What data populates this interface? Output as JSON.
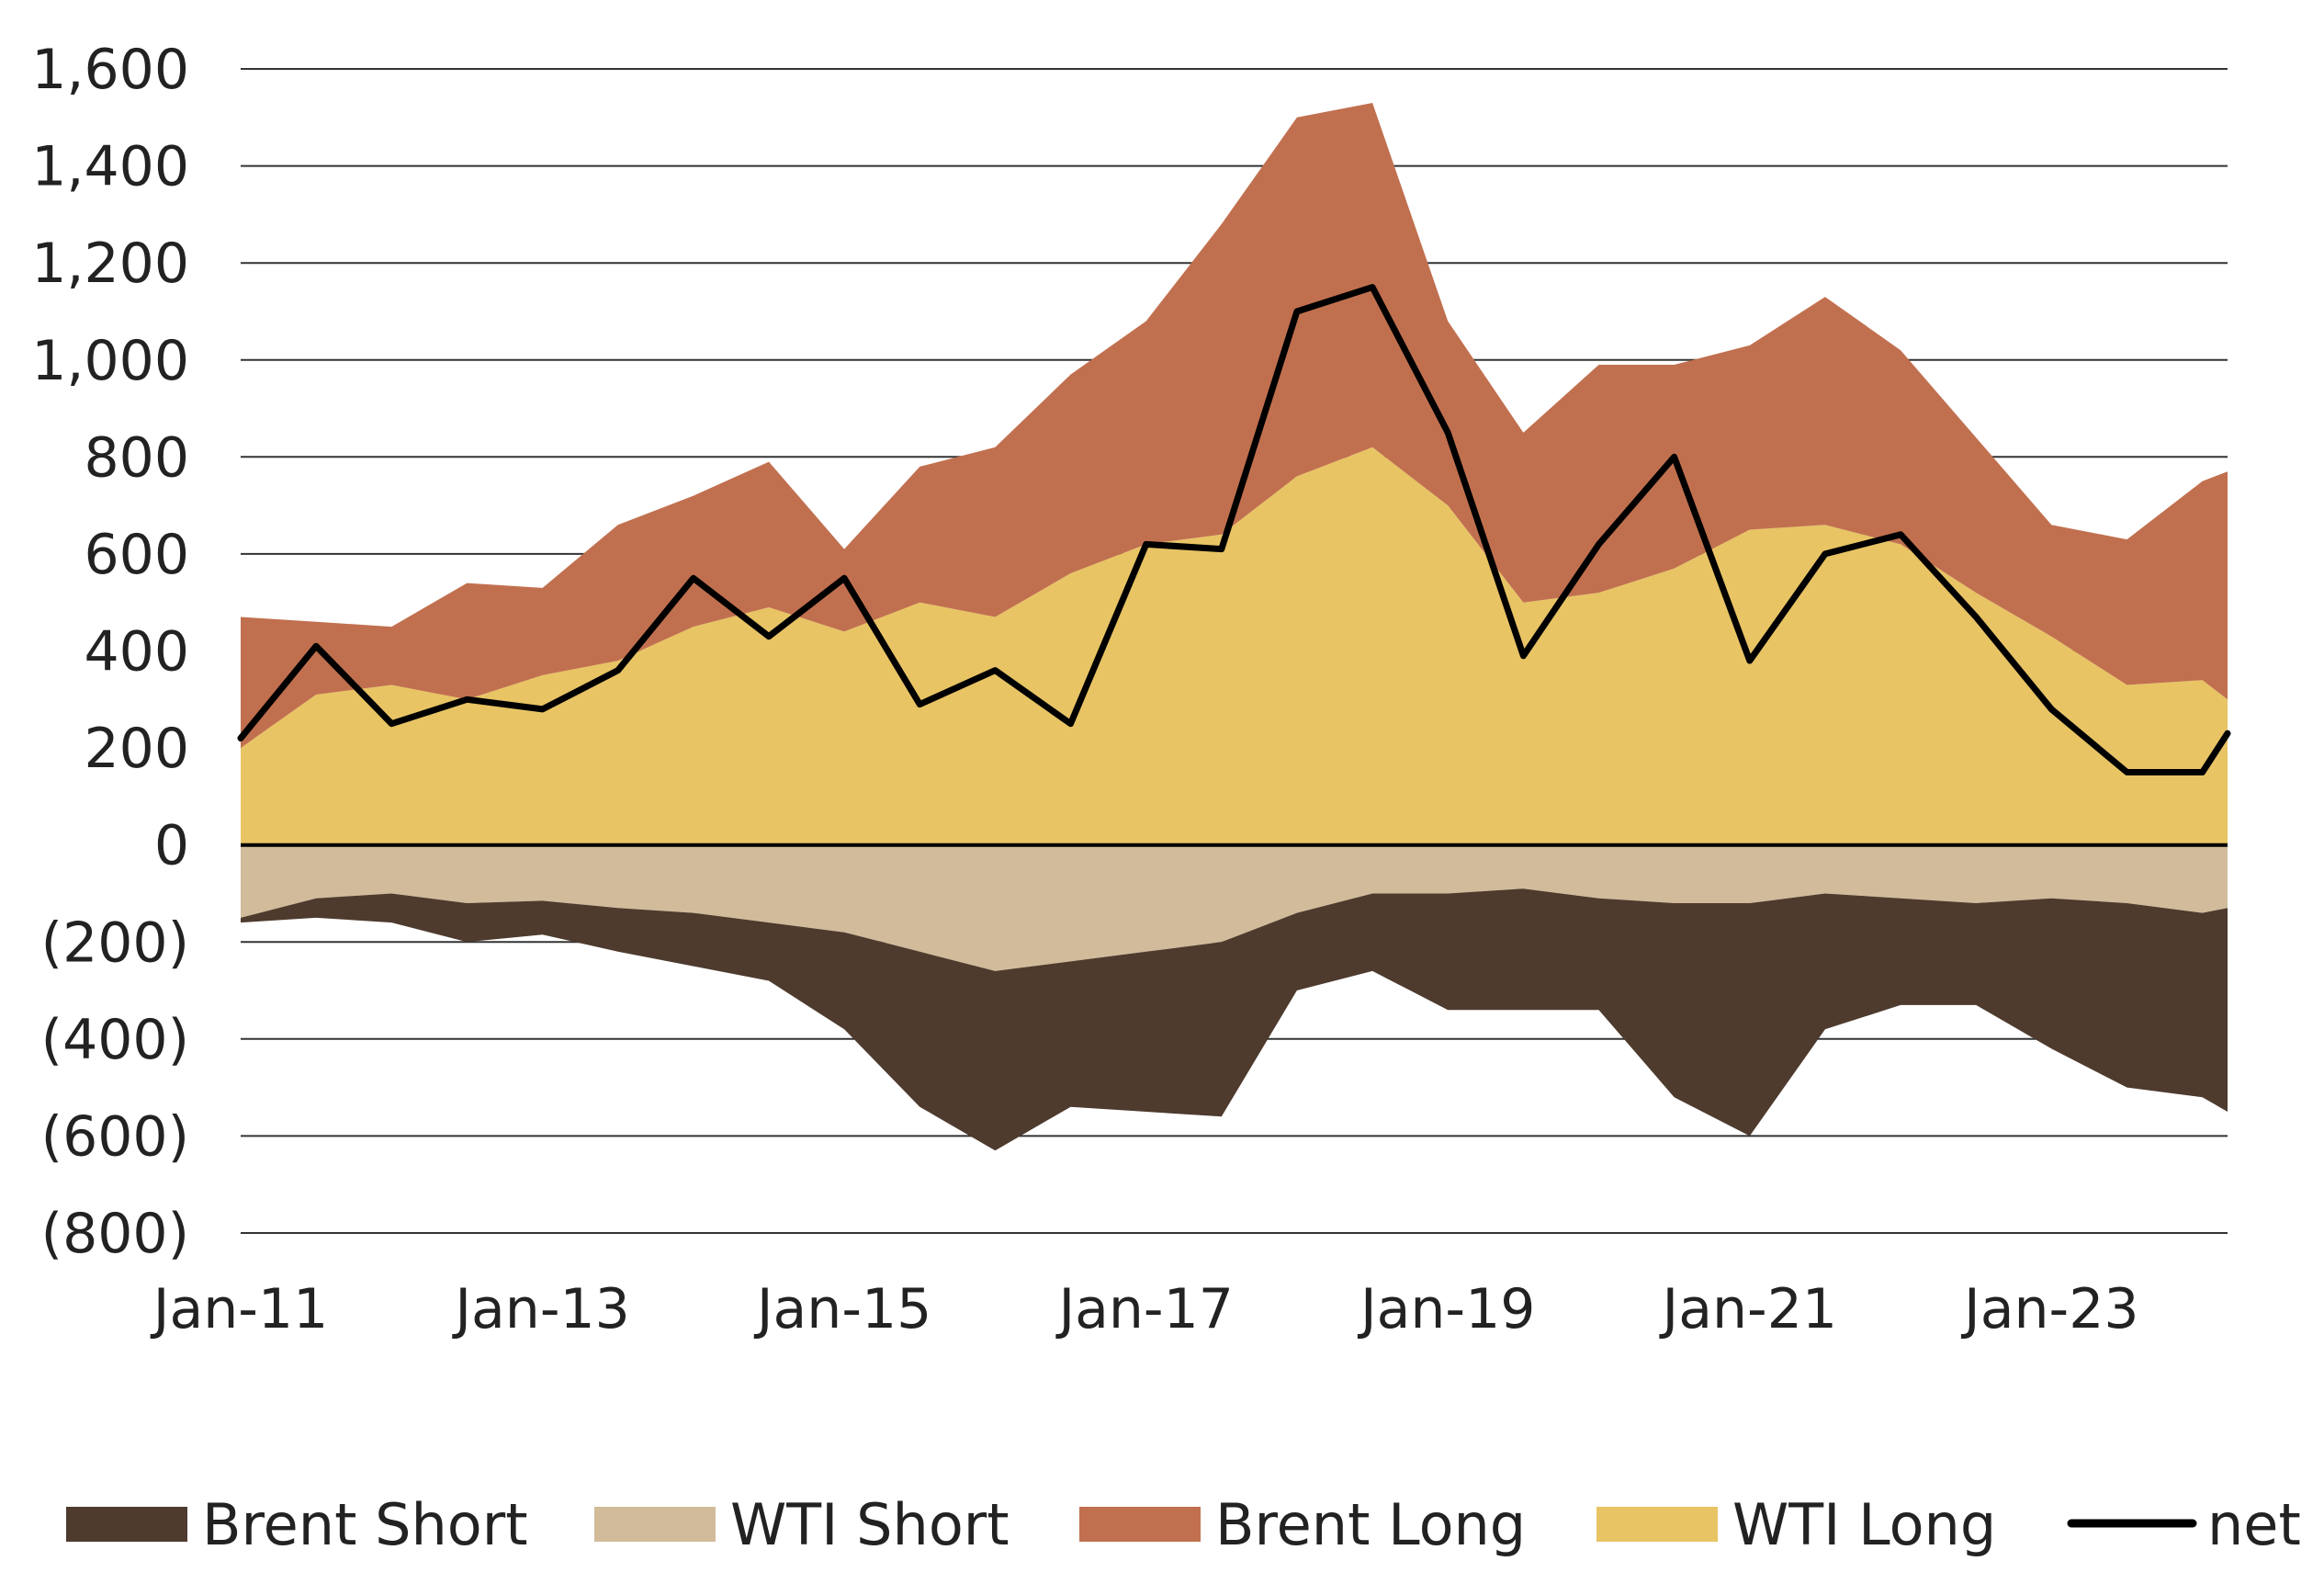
{
  "chart_data": {
    "type": "area",
    "title": "",
    "xlabel": "",
    "ylabel": "",
    "ylim": [
      -800,
      1600
    ],
    "yticks": [
      1600,
      1400,
      1200,
      1000,
      800,
      600,
      400,
      200,
      0,
      -200,
      -400,
      -600,
      -800
    ],
    "ytick_labels": [
      "1,600",
      "1,400",
      "1,200",
      "1,000",
      "800",
      "600",
      "400",
      "200",
      "0",
      "(200)",
      "(400)",
      "(600)",
      "(800)"
    ],
    "xlim": [
      "2011-01",
      "2024-03"
    ],
    "xtick_labels": [
      "Jan-11",
      "Jan-13",
      "Jan-15",
      "Jan-17",
      "Jan-19",
      "Jan-21",
      "Jan-23"
    ],
    "grid": "horizontal",
    "legend_position": "bottom",
    "x": [
      "2011-01",
      "2011-07",
      "2012-01",
      "2012-07",
      "2013-01",
      "2013-07",
      "2014-01",
      "2014-07",
      "2015-01",
      "2015-07",
      "2016-01",
      "2016-07",
      "2017-01",
      "2017-07",
      "2018-01",
      "2018-07",
      "2019-01",
      "2019-07",
      "2020-01",
      "2020-07",
      "2021-01",
      "2021-07",
      "2022-01",
      "2022-07",
      "2023-01",
      "2023-07",
      "2024-01",
      "2024-03"
    ],
    "series": [
      {
        "name": "WTI Long",
        "kind": "positive-stack",
        "color": "#E8C465",
        "values": [
          200,
          310,
          330,
          300,
          350,
          380,
          450,
          490,
          440,
          500,
          470,
          560,
          620,
          640,
          760,
          820,
          700,
          500,
          520,
          570,
          650,
          660,
          620,
          520,
          430,
          330,
          340,
          300
        ]
      },
      {
        "name": "Brent Long",
        "kind": "positive-stack",
        "color": "#C1704F",
        "values": [
          270,
          150,
          120,
          240,
          180,
          280,
          270,
          300,
          170,
          280,
          350,
          410,
          460,
          640,
          740,
          710,
          380,
          350,
          470,
          420,
          380,
          470,
          400,
          320,
          230,
          300,
          410,
          470
        ]
      },
      {
        "name": "WTI Short",
        "kind": "negative-stack",
        "color": "#D1BB9A",
        "values": [
          -150,
          -110,
          -100,
          -120,
          -115,
          -130,
          -140,
          -160,
          -180,
          -220,
          -260,
          -240,
          -220,
          -200,
          -140,
          -100,
          -100,
          -90,
          -110,
          -120,
          -120,
          -100,
          -110,
          -120,
          -110,
          -120,
          -140,
          -130
        ]
      },
      {
        "name": "Brent Short",
        "kind": "negative-stack",
        "color": "#4E3B2E",
        "values": [
          -10,
          -40,
          -60,
          -80,
          -70,
          -90,
          -110,
          -120,
          -200,
          -320,
          -370,
          -300,
          -330,
          -360,
          -160,
          -160,
          -240,
          -250,
          -230,
          -400,
          -480,
          -280,
          -220,
          -210,
          -310,
          -380,
          -380,
          -420
        ]
      },
      {
        "name": "net",
        "kind": "line",
        "color": "#000000",
        "values": [
          220,
          410,
          250,
          300,
          280,
          360,
          550,
          430,
          550,
          290,
          360,
          250,
          620,
          610,
          1100,
          1150,
          850,
          390,
          620,
          800,
          380,
          600,
          640,
          470,
          280,
          150,
          150,
          230
        ]
      }
    ]
  },
  "legend": [
    {
      "label": "Brent Short",
      "color": "#4E3B2E",
      "kind": "swatch"
    },
    {
      "label": "WTI Short",
      "color": "#D1BB9A",
      "kind": "swatch"
    },
    {
      "label": "Brent Long",
      "color": "#C1704F",
      "kind": "swatch"
    },
    {
      "label": "WTI Long",
      "color": "#E8C465",
      "kind": "swatch"
    },
    {
      "label": "net",
      "color": "#000000",
      "kind": "line"
    }
  ]
}
